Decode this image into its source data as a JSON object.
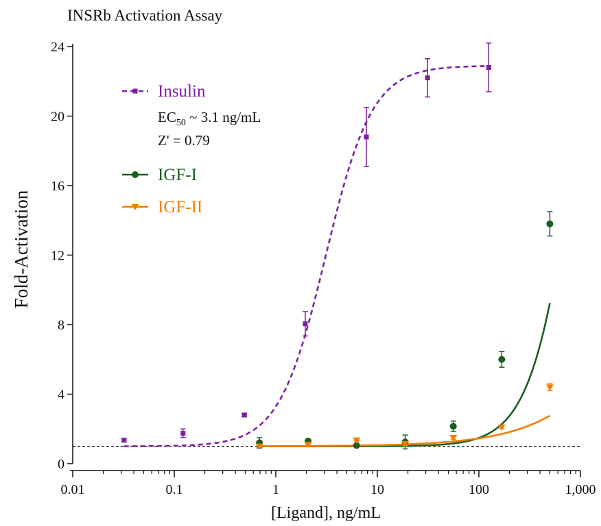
{
  "chart_data": {
    "type": "scatter",
    "title": "INSRb Activation Assay",
    "xlabel": "[Ligand], ng/mL",
    "ylabel": "Fold-Activation",
    "x_scale": "log",
    "xlim": [
      0.01,
      1000
    ],
    "ylim": [
      0,
      24
    ],
    "x_ticks": [
      0.01,
      0.1,
      1,
      10,
      100,
      1000
    ],
    "x_tick_labels": [
      "0.01",
      "0.1",
      "1",
      "10",
      "100",
      "1,000"
    ],
    "y_ticks": [
      0,
      4,
      8,
      12,
      16,
      20,
      24
    ],
    "y_tick_labels": [
      "0",
      "4",
      "8",
      "12",
      "16",
      "20",
      "24"
    ],
    "baseline": 1,
    "legend_placement": "top-left",
    "series": [
      {
        "name": "Insulin",
        "color": "#7b1fa2",
        "marker": "square",
        "line_style": "dashed",
        "x": [
          0.032,
          0.122,
          0.49,
          1.95,
          7.8,
          31.2,
          125
        ],
        "y": [
          1.35,
          1.75,
          2.8,
          8.05,
          18.8,
          22.2,
          22.8
        ],
        "error": [
          0.1,
          0.25,
          0.1,
          0.7,
          1.7,
          1.1,
          1.4
        ],
        "note": [
          "EC50 ~ 3.1 ng/mL",
          "Z' = 0.79"
        ]
      },
      {
        "name": "IGF-I",
        "color": "#1b5e20",
        "marker": "circle",
        "line_style": "solid",
        "x": [
          0.69,
          2.08,
          6.25,
          18.8,
          56,
          168,
          500
        ],
        "y": [
          1.2,
          1.3,
          1.05,
          1.25,
          2.15,
          6.0,
          13.8
        ],
        "error": [
          0.3,
          0.05,
          0.05,
          0.4,
          0.3,
          0.45,
          0.7
        ]
      },
      {
        "name": "IGF-II",
        "color": "#f57c00",
        "marker": "triangle-down",
        "line_style": "solid",
        "x": [
          0.69,
          2.08,
          6.25,
          18.8,
          56,
          168,
          500
        ],
        "y": [
          1.0,
          1.1,
          1.35,
          1.15,
          1.5,
          2.1,
          4.4
        ],
        "error": [
          0.05,
          0.05,
          0.05,
          0.1,
          0.1,
          0.1,
          0.2
        ]
      }
    ]
  }
}
